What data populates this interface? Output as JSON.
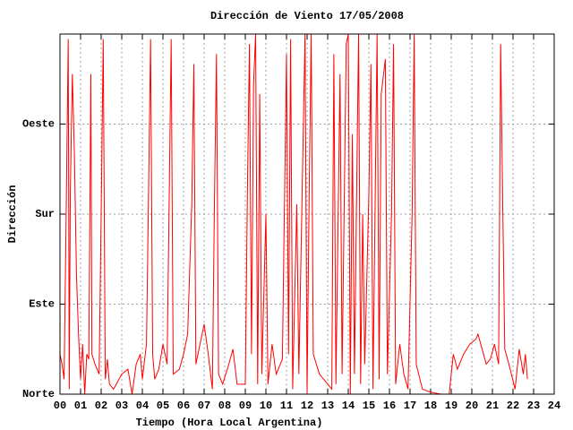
{
  "chart_data": {
    "type": "line",
    "title": "Dirección de Viento 17/05/2008",
    "xlabel": "Tiempo (Hora Local Argentina)",
    "ylabel": "Dirección",
    "xlim": [
      0,
      24
    ],
    "ylim": [
      0,
      360
    ],
    "xticks": [
      {
        "value": 0,
        "label": "00"
      },
      {
        "value": 1,
        "label": "01"
      },
      {
        "value": 2,
        "label": "02"
      },
      {
        "value": 3,
        "label": "03"
      },
      {
        "value": 4,
        "label": "04"
      },
      {
        "value": 5,
        "label": "05"
      },
      {
        "value": 6,
        "label": "06"
      },
      {
        "value": 7,
        "label": "07"
      },
      {
        "value": 8,
        "label": "08"
      },
      {
        "value": 9,
        "label": "09"
      },
      10,
      11,
      12,
      13,
      14,
      15,
      16,
      17,
      18,
      19,
      20,
      21,
      22,
      23,
      24
    ],
    "yticks": [
      {
        "value": 0,
        "label": "Norte"
      },
      {
        "value": 90,
        "label": "Este"
      },
      {
        "value": 180,
        "label": "Sur"
      },
      {
        "value": 270,
        "label": "Oeste"
      }
    ],
    "grid": true,
    "x": [
      0.0,
      0.1,
      0.2,
      0.3,
      0.4,
      0.45,
      0.5,
      0.6,
      0.7,
      0.8,
      0.9,
      1.0,
      1.1,
      1.2,
      1.3,
      1.4,
      1.5,
      1.55,
      1.7,
      1.9,
      2.0,
      2.1,
      2.2,
      2.3,
      2.4,
      2.6,
      3.0,
      3.3,
      3.5,
      3.7,
      3.9,
      4.0,
      4.2,
      4.3,
      4.4,
      4.5,
      4.6,
      4.8,
      5.0,
      5.2,
      5.3,
      5.4,
      5.5,
      5.8,
      6.0,
      6.2,
      6.4,
      6.5,
      6.6,
      6.8,
      7.0,
      7.2,
      7.4,
      7.5,
      7.6,
      7.7,
      7.9,
      8.2,
      8.4,
      8.6,
      9.0,
      9.1,
      9.2,
      9.3,
      9.4,
      9.5,
      9.6,
      9.7,
      9.8,
      10.0,
      10.1,
      10.3,
      10.5,
      10.8,
      11.0,
      11.1,
      11.2,
      11.3,
      11.5,
      11.6,
      11.9,
      12.0,
      12.1,
      12.2,
      12.3,
      12.6,
      13.0,
      13.2,
      13.3,
      13.4,
      13.6,
      13.7,
      13.9,
      14.0,
      14.1,
      14.2,
      14.3,
      14.5,
      14.6,
      14.7,
      14.8,
      15.0,
      15.1,
      15.2,
      15.4,
      15.5,
      15.6,
      15.8,
      15.9,
      16.1,
      16.2,
      16.3,
      16.5,
      16.7,
      16.9,
      17.1,
      17.2,
      17.3,
      17.6,
      18.0,
      18.5,
      18.9,
      19.1,
      19.3,
      19.6,
      19.9,
      20.2,
      20.3,
      20.5,
      20.7,
      20.9,
      21.1,
      21.3,
      21.4,
      21.5,
      21.6,
      21.8,
      22.1,
      22.3,
      22.5,
      22.6,
      22.7
    ],
    "series": [
      {
        "name": "Dirección",
        "color": "#ff0000",
        "values": [
          40,
          30,
          15,
          180,
          355,
          5,
          200,
          320,
          240,
          120,
          60,
          15,
          50,
          0,
          40,
          35,
          320,
          40,
          30,
          20,
          180,
          355,
          15,
          35,
          10,
          5,
          20,
          25,
          0,
          30,
          40,
          15,
          50,
          200,
          355,
          40,
          15,
          25,
          50,
          30,
          190,
          355,
          20,
          25,
          40,
          60,
          190,
          330,
          30,
          50,
          70,
          40,
          5,
          190,
          340,
          20,
          10,
          30,
          45,
          10,
          10,
          200,
          350,
          40,
          310,
          360,
          10,
          300,
          20,
          180,
          10,
          50,
          20,
          35,
          340,
          40,
          355,
          5,
          190,
          20,
          360,
          0,
          200,
          360,
          40,
          20,
          10,
          5,
          340,
          10,
          320,
          20,
          350,
          360,
          0,
          260,
          20,
          360,
          10,
          180,
          30,
          200,
          330,
          5,
          360,
          15,
          300,
          335,
          20,
          180,
          350,
          10,
          50,
          20,
          5,
          180,
          360,
          30,
          5,
          2,
          0,
          0,
          40,
          25,
          40,
          50,
          55,
          60,
          45,
          30,
          35,
          50,
          30,
          350,
          190,
          45,
          30,
          5,
          45,
          20,
          40,
          15
        ]
      }
    ]
  }
}
